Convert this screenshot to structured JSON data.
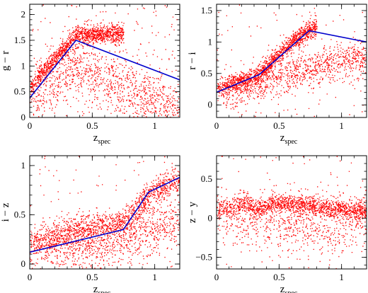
{
  "chart_data": [
    {
      "type": "scatter",
      "panel": "top-left",
      "xlabel": "z",
      "xlabel_sub": "spec",
      "ylabel": "g − r",
      "xlim": [
        0,
        1.2
      ],
      "ylim": [
        0,
        2.2
      ],
      "xticks": [
        0,
        0.5,
        1
      ],
      "xtick_labels": [
        "0",
        "0.5",
        "1"
      ],
      "yticks": [
        0,
        0.5,
        1,
        1.5,
        2
      ],
      "ytick_labels": [
        "0",
        "0.5",
        "1",
        "1.5",
        "2"
      ],
      "point_color": "#ff0000",
      "line_color": "#0000cc",
      "model_line": {
        "x": [
          0,
          0.37,
          1.2
        ],
        "y": [
          0.38,
          1.5,
          0.73
        ]
      },
      "point_clouds": [
        {
          "fn": "poly",
          "xs": [
            0.0,
            0.1,
            0.2,
            0.3,
            0.37,
            0.45,
            0.6,
            0.75
          ],
          "ys": [
            0.55,
            0.9,
            1.15,
            1.42,
            1.6,
            1.62,
            1.62,
            1.65
          ],
          "scatter": 0.09,
          "n": 1300
        },
        {
          "fn": "poly",
          "xs": [
            0.0,
            0.2,
            0.35,
            0.5,
            0.8,
            1.05,
            1.2
          ],
          "ys": [
            0.3,
            0.75,
            1.0,
            0.85,
            0.55,
            0.25,
            0.1
          ],
          "scatter": 0.28,
          "n": 1100
        },
        {
          "fn": "uniform",
          "x0": 0.0,
          "x1": 1.2,
          "y0": 0.0,
          "y1": 2.2,
          "n": 180
        }
      ]
    },
    {
      "type": "scatter",
      "panel": "top-right",
      "xlabel": "z",
      "xlabel_sub": "spec",
      "ylabel": "r − i",
      "xlim": [
        0,
        1.2
      ],
      "ylim": [
        -0.2,
        1.6
      ],
      "xticks": [
        0,
        0.5,
        1
      ],
      "xtick_labels": [
        "0",
        "0.5",
        "1"
      ],
      "yticks": [
        0,
        0.5,
        1,
        1.5
      ],
      "ytick_labels": [
        "0",
        "0.5",
        "1",
        "1.5"
      ],
      "point_color": "#ff0000",
      "line_color": "#0000cc",
      "model_line": {
        "x": [
          0,
          0.34,
          0.74,
          1.2
        ],
        "y": [
          0.2,
          0.48,
          1.18,
          1.0
        ]
      },
      "point_clouds": [
        {
          "fn": "poly",
          "xs": [
            0.0,
            0.15,
            0.3,
            0.4,
            0.5,
            0.6,
            0.7,
            0.8
          ],
          "ys": [
            0.25,
            0.35,
            0.45,
            0.6,
            0.8,
            1.0,
            1.15,
            1.25
          ],
          "scatter": 0.07,
          "n": 1300
        },
        {
          "fn": "poly",
          "xs": [
            0.05,
            0.3,
            0.5,
            0.7,
            0.9,
            1.2
          ],
          "ys": [
            0.15,
            0.3,
            0.45,
            0.55,
            0.65,
            0.75
          ],
          "scatter": 0.14,
          "n": 1000
        },
        {
          "fn": "uniform",
          "x0": 0.0,
          "x1": 1.2,
          "y0": -0.2,
          "y1": 1.6,
          "n": 120
        }
      ]
    },
    {
      "type": "scatter",
      "panel": "bottom-left",
      "xlabel": "z",
      "xlabel_sub": "spec",
      "ylabel": "i − z",
      "xlim": [
        0,
        1.2
      ],
      "ylim": [
        -0.05,
        1.1
      ],
      "xticks": [
        0,
        0.5,
        1
      ],
      "xtick_labels": [
        "0",
        "0.5",
        "1"
      ],
      "yticks": [
        0,
        0.5,
        1
      ],
      "ytick_labels": [
        "0",
        "0.5",
        "1"
      ],
      "point_color": "#ff0000",
      "line_color": "#0000cc",
      "model_line": {
        "x": [
          0,
          0.75,
          0.95,
          1.2
        ],
        "y": [
          0.12,
          0.35,
          0.73,
          0.88
        ]
      },
      "point_clouds": [
        {
          "fn": "poly",
          "xs": [
            0.0,
            0.2,
            0.4,
            0.6,
            0.75,
            0.85,
            0.95,
            1.1,
            1.2
          ],
          "ys": [
            0.22,
            0.28,
            0.35,
            0.4,
            0.42,
            0.55,
            0.7,
            0.8,
            0.85
          ],
          "scatter": 0.07,
          "n": 1400
        },
        {
          "fn": "poly",
          "xs": [
            0.0,
            0.3,
            0.6,
            0.9,
            1.2
          ],
          "ys": [
            0.1,
            0.15,
            0.2,
            0.3,
            0.45
          ],
          "scatter": 0.13,
          "n": 900
        },
        {
          "fn": "uniform",
          "x0": 0.0,
          "x1": 1.2,
          "y0": -0.05,
          "y1": 1.1,
          "n": 120
        }
      ]
    },
    {
      "type": "scatter",
      "panel": "bottom-right",
      "xlabel": "z",
      "xlabel_sub": "spec",
      "ylabel": "z − y",
      "xlim": [
        0,
        1.2
      ],
      "ylim": [
        -0.65,
        0.8
      ],
      "xticks": [
        0,
        0.5,
        1
      ],
      "xtick_labels": [
        "0",
        "0.5",
        "1"
      ],
      "yticks": [
        -0.5,
        0,
        0.5
      ],
      "ytick_labels": [
        "−0.5",
        "0",
        "0.5"
      ],
      "point_color": "#ff0000",
      "line_color": "#0000cc",
      "model_line": null,
      "point_clouds": [
        {
          "fn": "poly",
          "xs": [
            0.0,
            0.25,
            0.35,
            0.45,
            0.7,
            0.9,
            1.2
          ],
          "ys": [
            0.12,
            0.18,
            0.12,
            0.2,
            0.18,
            0.12,
            0.1
          ],
          "scatter": 0.06,
          "n": 1500
        },
        {
          "fn": "poly",
          "xs": [
            0.0,
            0.3,
            0.5,
            0.7,
            0.9,
            1.2
          ],
          "ys": [
            0.05,
            -0.05,
            -0.1,
            -0.05,
            -0.15,
            0.0
          ],
          "scatter": 0.18,
          "n": 700
        },
        {
          "fn": "uniform",
          "x0": 0.0,
          "x1": 1.2,
          "y0": -0.65,
          "y1": 0.8,
          "n": 100
        }
      ]
    }
  ]
}
